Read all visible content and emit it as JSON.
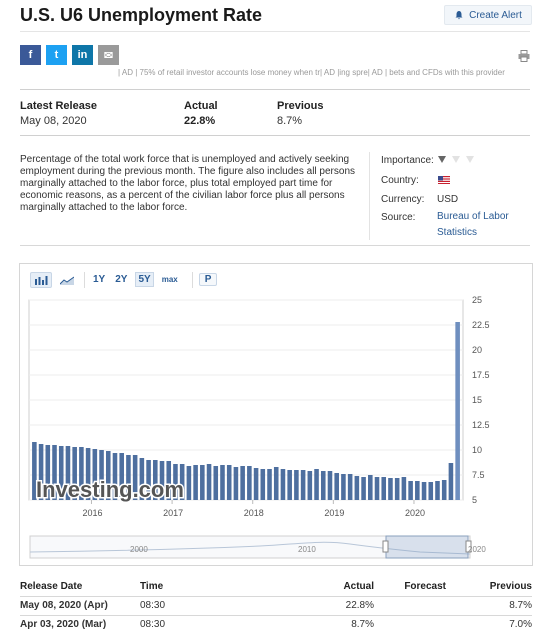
{
  "page": {
    "title": "U.S. U6 Unemployment Rate",
    "create_alert_label": "Create Alert",
    "ad_line": "| AD | 75% of retail investor accounts lose money when tr| AD |ing spre| AD | bets and CFDs with this provider"
  },
  "share": {
    "facebook": "f",
    "twitter": "t",
    "linkedin": "in",
    "email": "✉"
  },
  "release": {
    "latest_label": "Latest Release",
    "latest_date": "May 08, 2020",
    "actual_label": "Actual",
    "actual_value": "22.8%",
    "previous_label": "Previous",
    "previous_value": "8.7%"
  },
  "description": "Percentage of the total work force that is unemployed and actively seeking employment during the previous month. The figure also includes all persons marginally attached to the labor force, plus total employed part time for economic reasons, as a percent of the civilian labor force plus all persons marginally attached to the labor force.",
  "meta": {
    "importance_label": "Importance:",
    "importance_level": 1,
    "country_label": "Country:",
    "currency_label": "Currency:",
    "currency_value": "USD",
    "source_label": "Source:",
    "source_value": "Bureau of Labor Statistics"
  },
  "chart_toolbar": {
    "ranges": [
      "1Y",
      "2Y",
      "5Y",
      "max"
    ],
    "active_range": "5Y",
    "p_label": "P"
  },
  "chart_data": {
    "type": "bar",
    "watermark": "Investing.com",
    "x_tick_labels": [
      "2016",
      "2017",
      "2018",
      "2019",
      "2020"
    ],
    "y_tick_labels": [
      "25",
      "22.5",
      "20",
      "17.5",
      "15",
      "12.5",
      "10",
      "7.5",
      "5"
    ],
    "ylim": [
      5,
      25
    ],
    "grid": true,
    "series": [
      {
        "values": [
          10.8,
          10.6,
          10.5,
          10.5,
          10.4,
          10.4,
          10.3,
          10.3,
          10.2,
          10.1,
          10.0,
          9.9,
          9.7,
          9.7,
          9.5,
          9.5,
          9.2,
          9.0,
          9.0,
          8.9,
          8.9,
          8.6,
          8.6,
          8.4,
          8.5,
          8.5,
          8.6,
          8.4,
          8.5,
          8.5,
          8.3,
          8.4,
          8.4,
          8.2,
          8.1,
          8.1,
          8.3,
          8.1,
          8.0,
          8.0,
          8.0,
          7.9,
          8.1,
          7.9,
          7.9,
          7.7,
          7.6,
          7.6,
          7.4,
          7.3,
          7.5,
          7.3,
          7.3,
          7.2,
          7.2,
          7.3,
          6.9,
          6.9,
          6.8,
          6.8,
          6.9,
          7.0,
          8.7,
          22.8
        ],
        "highlight_last": true
      }
    ]
  },
  "navigator": {
    "labels": [
      "2000",
      "2010",
      "2020"
    ]
  },
  "table": {
    "headers": {
      "date": "Release Date",
      "time": "Time",
      "actual": "Actual",
      "forecast": "Forecast",
      "previous": "Previous"
    },
    "rows": [
      {
        "date": "May 08, 2020 (Apr)",
        "time": "08:30",
        "actual": "22.8%",
        "forecast": "",
        "previous": "8.7%"
      },
      {
        "date": "Apr 03, 2020 (Mar)",
        "time": "08:30",
        "actual": "8.7%",
        "forecast": "",
        "previous": "7.0%"
      }
    ]
  },
  "colors": {
    "bar": "#4e6f9f",
    "bar_highlight": "#6f8fbf",
    "link": "#2a5b94"
  }
}
